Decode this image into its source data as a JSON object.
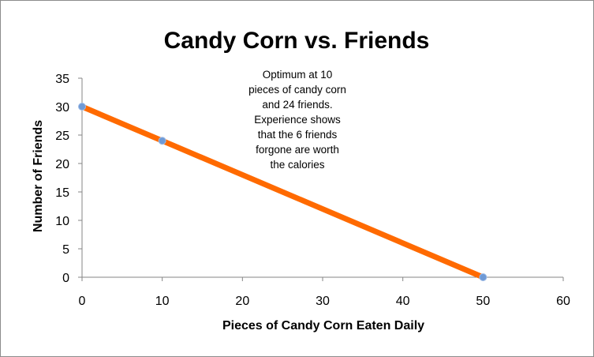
{
  "chart_data": {
    "type": "line",
    "title": "Candy Corn vs. Friends",
    "xlabel": "Pieces of Candy Corn Eaten Daily",
    "ylabel": "Number of Friends",
    "xlim": [
      0,
      60
    ],
    "ylim": [
      0,
      35
    ],
    "xticks": [
      0,
      10,
      20,
      30,
      40,
      50,
      60
    ],
    "yticks": [
      0,
      5,
      10,
      15,
      20,
      25,
      30,
      35
    ],
    "grid": false,
    "legend": "none",
    "series": [
      {
        "x": [
          0,
          10,
          50
        ],
        "y": [
          30,
          24,
          0
        ],
        "line_color": "#ff6a00",
        "marker_color": "#6f9ad6"
      }
    ],
    "annotation": {
      "lines": [
        "Optimum at 10",
        "pieces of candy corn",
        "and 24 friends.",
        "Experience shows",
        "that the 6 friends",
        "forgone are worth",
        "the calories"
      ]
    }
  }
}
